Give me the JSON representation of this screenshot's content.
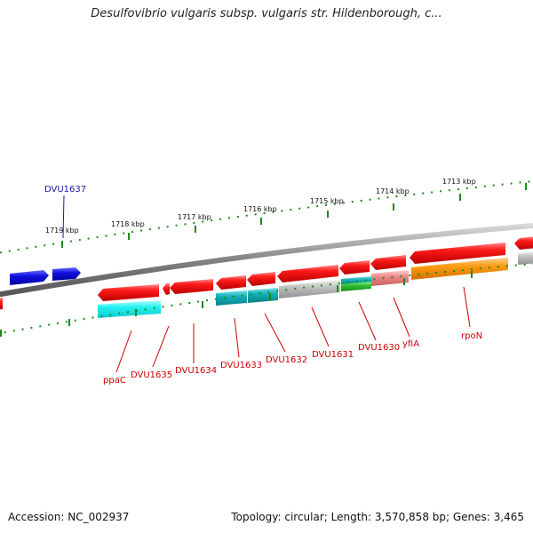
{
  "title": "Desulfovibrio vulgaris subsp. vulgaris str. Hildenborough, c...",
  "footer": {
    "accession": "Accession: NC_002937",
    "summary": "Topology: circular; Length: 3,570,858 bp; Genes: 3,465"
  },
  "colors": {
    "red_gene": "#ee1111",
    "blue_gene": "#1212d8",
    "cyan": "#1ee8ee",
    "teal": "#14b0b8",
    "gray": "#b8b8b8",
    "green": "#30c030",
    "pink": "#f08a8a",
    "orange": "#ff9a10",
    "label_red": "#cc0000",
    "label_blue": "#1a1aa8",
    "tick_green": "#1a8a1a"
  },
  "ruler_labels": [
    "1719 kbp",
    "1718 kbp",
    "1717 kbp",
    "1716 kbp",
    "1715 kbp",
    "1714 kbp",
    "1713 kbp"
  ],
  "gene_labels": [
    "DVU1637",
    "ppaC",
    "DVU1635",
    "DVU1634",
    "DVU1633",
    "DVU1632",
    "DVU1631",
    "DVU1630",
    "yfiA",
    "rpoN"
  ]
}
